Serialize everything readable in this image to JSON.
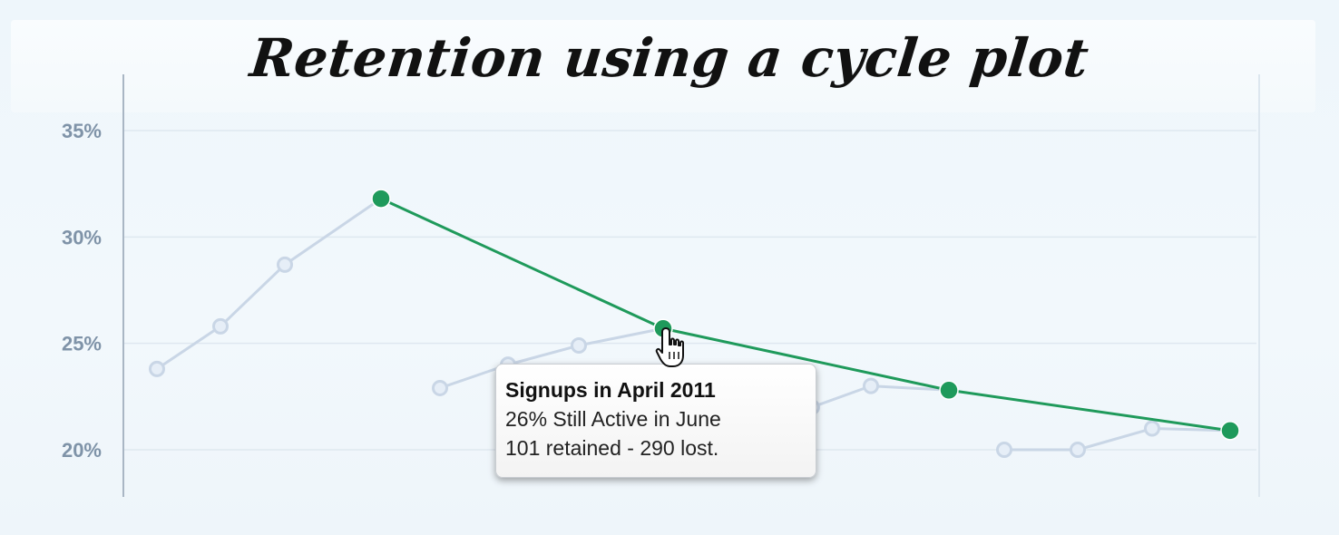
{
  "chart_data": {
    "type": "line",
    "title": "Retention using a cycle plot",
    "ylim": [
      18,
      37.5
    ],
    "y_ticks": [
      35,
      30,
      25,
      20
    ],
    "y_tick_labels": [
      "35%",
      "30%",
      "25%",
      "20%"
    ],
    "grid": true,
    "series": [
      {
        "color": "#c9d6e6",
        "segments": [
          [
            [
              1,
              23.8
            ],
            [
              2,
              25.8
            ],
            [
              3,
              28.7
            ],
            [
              4,
              31.8
            ]
          ],
          [
            [
              5,
              22.9
            ],
            [
              6,
              24.0
            ],
            [
              7,
              24.9
            ],
            [
              8,
              25.7
            ]
          ],
          [
            [
              9,
              22.0
            ],
            [
              10,
              23.0
            ],
            [
              11,
              22.8
            ]
          ],
          [
            [
              12,
              20.0
            ],
            [
              13,
              20.0
            ],
            [
              14,
              21.0
            ],
            [
              15,
              20.9
            ]
          ]
        ]
      },
      {
        "color": "#1f9a5b",
        "segments": [
          [
            [
              4,
              31.8
            ],
            [
              8,
              25.7
            ],
            [
              11,
              22.8
            ],
            [
              15,
              20.9
            ]
          ]
        ]
      }
    ],
    "x_positions": [
      173,
      243,
      314,
      420,
      485,
      560,
      638,
      731,
      895,
      960,
      1046,
      1107,
      1188,
      1270,
      1356
    ]
  },
  "tooltip": {
    "title": "Signups in April 2011",
    "line1": "26% Still Active in June",
    "line2": "101 retained - 290 lost."
  }
}
